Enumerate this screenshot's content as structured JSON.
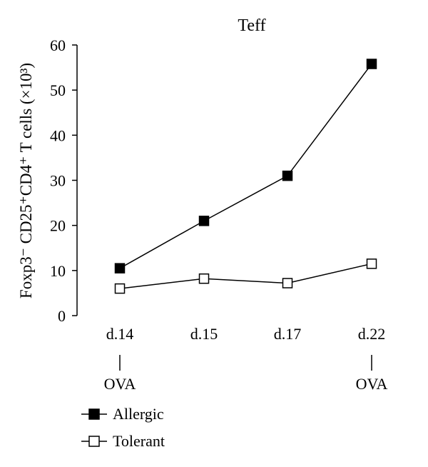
{
  "chart_data": {
    "type": "line",
    "title": "Teff",
    "ylabel": "Foxp3⁻ CD25⁺CD4⁺ T cells (×10³)",
    "xlabel": "",
    "categories": [
      "d.14",
      "d.15",
      "d.17",
      "d.22"
    ],
    "ylim": [
      0,
      60
    ],
    "yticks": [
      0,
      10,
      20,
      30,
      40,
      50,
      60
    ],
    "series": [
      {
        "name": "Allergic",
        "marker": "filled-square",
        "values": [
          10.5,
          21,
          31,
          55.8
        ]
      },
      {
        "name": "Tolerant",
        "marker": "open-square",
        "values": [
          6,
          8.2,
          7.2,
          11.5
        ]
      }
    ],
    "annotations": [
      {
        "category": "d.14",
        "text": "OVA"
      },
      {
        "category": "d.22",
        "text": "OVA"
      }
    ],
    "legend_position": "bottom-left",
    "grid": false
  },
  "colors": {
    "line": "#000000",
    "open_marker_fill": "#ffffff"
  }
}
